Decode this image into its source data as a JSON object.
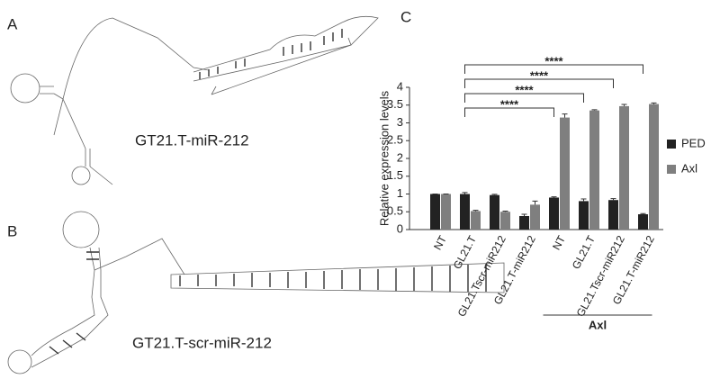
{
  "panels": {
    "a": {
      "label": "A",
      "caption": "GT21.T-miR-212"
    },
    "b": {
      "label": "B",
      "caption": "GT21.T-scr-miR-212"
    },
    "c": {
      "label": "C"
    }
  },
  "chart_data": {
    "type": "bar",
    "ylabel": "Relative expression levels",
    "categories": [
      "NT",
      "GL21.T",
      "GL21.Tscr-miR212",
      "GL21.T-miR212",
      "NT",
      "GL21.T",
      "GL21.Tscr-miR212",
      "GL21.T-miR212"
    ],
    "series": [
      {
        "name": "PED",
        "color": "#222222",
        "values": [
          1,
          1,
          0.97,
          0.38,
          0.9,
          0.8,
          0.83,
          0.43
        ],
        "errors": [
          0,
          0.04,
          0.02,
          0.05,
          0.02,
          0.06,
          0.04,
          0.02
        ]
      },
      {
        "name": "Axl",
        "color": "#7f7f7f",
        "values": [
          1,
          0.52,
          0.5,
          0.7,
          3.15,
          3.35,
          3.47,
          3.53
        ],
        "errors": [
          0,
          0.02,
          0.02,
          0.1,
          0.1,
          0.02,
          0.05,
          0.03
        ]
      }
    ],
    "group": {
      "label": "Axl",
      "from": 4,
      "to": 7
    },
    "significance": [
      {
        "from": 1,
        "to": 7,
        "label": "****"
      },
      {
        "from": 1,
        "to": 6,
        "label": "****"
      },
      {
        "from": 1,
        "to": 5,
        "label": "****"
      },
      {
        "from": 1,
        "to": 4,
        "label": "****"
      }
    ],
    "ylim": [
      0,
      4
    ],
    "yticks": [
      0,
      0.5,
      1,
      1.5,
      2,
      2.5,
      3,
      3.5,
      4
    ]
  }
}
